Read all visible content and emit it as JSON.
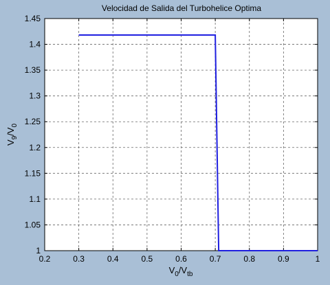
{
  "chart_data": {
    "type": "line",
    "title": "Velocidad de Salida del Turbohelice Optima",
    "xlabel": {
      "base": "V",
      "sub1": "0",
      "slash": "/V",
      "sub2": "tb"
    },
    "ylabel": {
      "base": "V",
      "sub1": "9",
      "slash": "/V",
      "sub2": "0"
    },
    "xlim": [
      0.2,
      1.0
    ],
    "ylim": [
      1.0,
      1.45
    ],
    "xticks": [
      0.2,
      0.3,
      0.4,
      0.5,
      0.6,
      0.7,
      0.8,
      0.9,
      1.0
    ],
    "xtick_labels": [
      "0.2",
      "0.3",
      "0.4",
      "0.5",
      "0.6",
      "0.7",
      "0.8",
      "0.9",
      "1"
    ],
    "yticks": [
      1.0,
      1.05,
      1.1,
      1.15,
      1.2,
      1.25,
      1.3,
      1.35,
      1.4,
      1.45
    ],
    "ytick_labels": [
      "1",
      "1.05",
      "1.1",
      "1.15",
      "1.2",
      "1.25",
      "1.3",
      "1.35",
      "1.4",
      "1.45"
    ],
    "grid": true,
    "series": [
      {
        "color": "#1f1fe0",
        "x": [
          0.3,
          0.7,
          0.71,
          1.0
        ],
        "y": [
          1.418,
          1.418,
          1.0,
          1.0
        ]
      }
    ]
  }
}
